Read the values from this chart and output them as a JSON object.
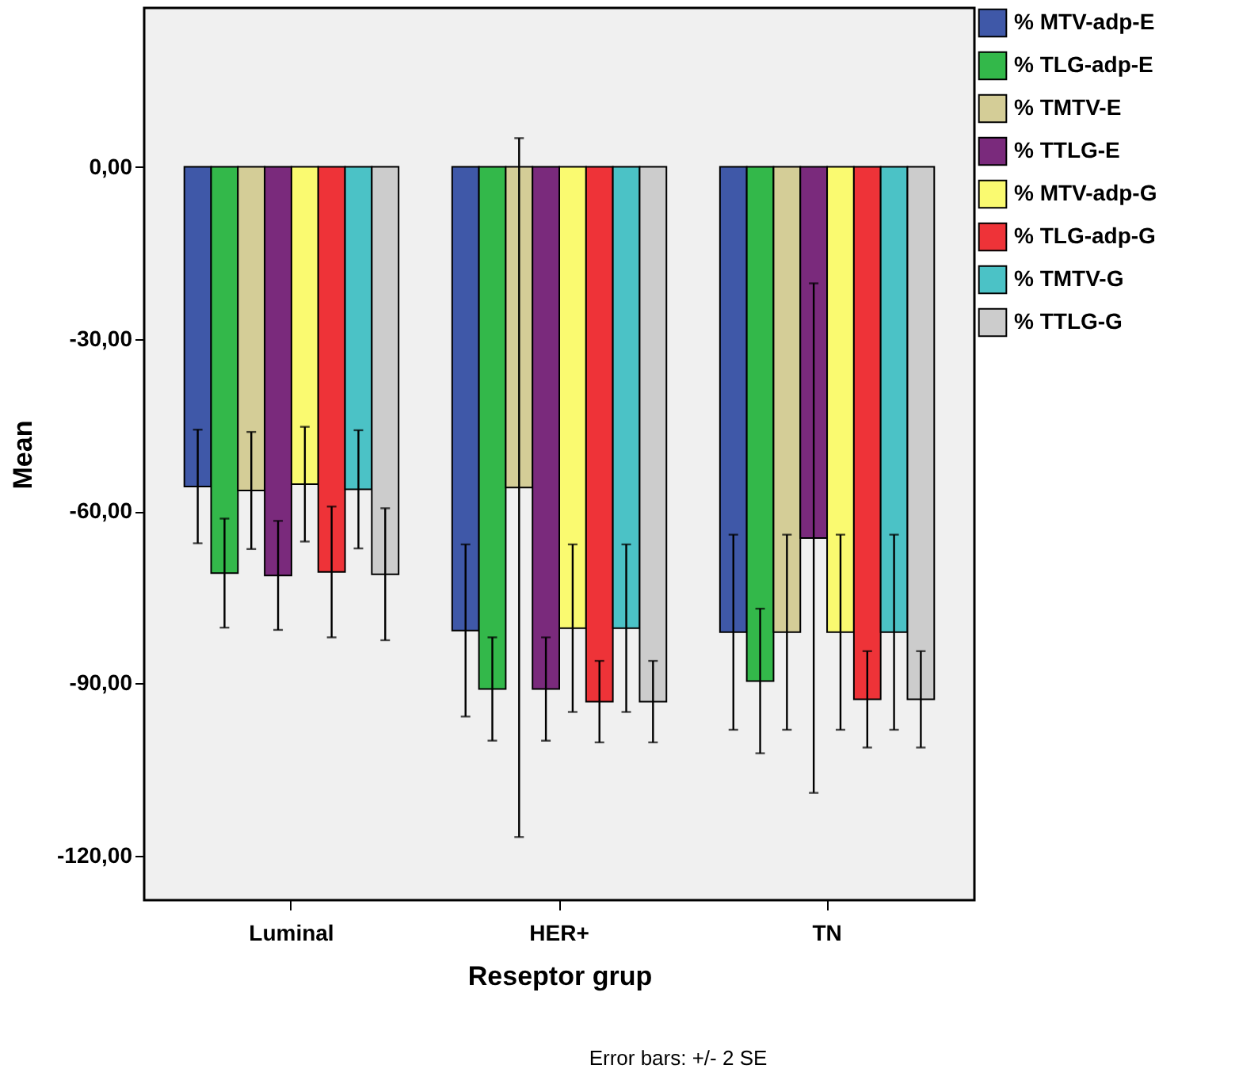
{
  "chart_data": {
    "type": "bar",
    "categories": [
      "Luminal",
      "HER+",
      "TN"
    ],
    "xlabel": "Reseptor grup",
    "ylabel": "Mean",
    "ylim": [
      -127.8,
      27.7
    ],
    "yticks": [
      {
        "value": 0,
        "label": "0,00"
      },
      {
        "value": -30,
        "label": "-30,00"
      },
      {
        "value": -60,
        "label": "-60,00"
      },
      {
        "value": -90,
        "label": "-90,00"
      },
      {
        "value": -120,
        "label": "-120,00"
      }
    ],
    "grid": false,
    "legend": "top right",
    "annotations": [
      "Error bars: +/- 2 SE"
    ],
    "series": [
      {
        "name": "% MTV-adp-E",
        "color": "#3f58a8",
        "values": [
          -55.7,
          -80.8,
          -81.1
        ],
        "errors": [
          9.9,
          15.0,
          17.0
        ]
      },
      {
        "name": "% TLG-adp-E",
        "color": "#33b84a",
        "values": [
          -70.8,
          -91.0,
          -89.6
        ],
        "errors": [
          9.5,
          9.0,
          12.6
        ]
      },
      {
        "name": "% TMTV-E",
        "color": "#d4cd97",
        "values": [
          -56.4,
          -55.9,
          -81.1
        ],
        "errors": [
          10.2,
          60.9,
          17.0
        ]
      },
      {
        "name": "% TTLG-E",
        "color": "#7a2a7c",
        "values": [
          -71.2,
          -91.0,
          -64.7
        ],
        "errors": [
          9.5,
          9.0,
          44.4
        ]
      },
      {
        "name": "% MTV-adp-G",
        "color": "#fafa70",
        "values": [
          -55.3,
          -80.4,
          -81.1
        ],
        "errors": [
          10.0,
          14.6,
          17.0
        ]
      },
      {
        "name": "% TLG-adp-G",
        "color": "#ee3338",
        "values": [
          -70.6,
          -93.2,
          -92.8
        ],
        "errors": [
          11.4,
          7.1,
          8.4
        ]
      },
      {
        "name": "% TMTV-G",
        "color": "#4bc2c6",
        "values": [
          -56.2,
          -80.4,
          -81.1
        ],
        "errors": [
          10.3,
          14.6,
          17.0
        ]
      },
      {
        "name": "% TTLG-G",
        "color": "#cccccc",
        "values": [
          -71.0,
          -93.2,
          -92.8
        ],
        "errors": [
          11.5,
          7.1,
          8.4
        ]
      }
    ]
  }
}
